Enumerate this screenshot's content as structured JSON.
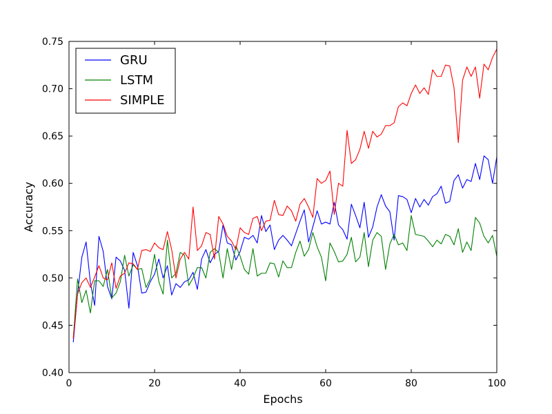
{
  "chart_data": {
    "type": "line",
    "title": "",
    "xlabel": "Epochs",
    "ylabel": "Accuracy",
    "xlim": [
      0,
      100
    ],
    "ylim": [
      0.4,
      0.75
    ],
    "x_ticks": [
      0,
      20,
      40,
      60,
      80,
      100
    ],
    "y_ticks": [
      "0.40",
      "0.45",
      "0.50",
      "0.55",
      "0.60",
      "0.65",
      "0.70",
      "0.75"
    ],
    "grid": false,
    "legend_position": "top-left",
    "x": [
      1,
      2,
      3,
      4,
      5,
      6,
      7,
      8,
      9,
      10,
      11,
      12,
      13,
      14,
      15,
      16,
      17,
      18,
      19,
      20,
      21,
      22,
      23,
      24,
      25,
      26,
      27,
      28,
      29,
      30,
      31,
      32,
      33,
      34,
      35,
      36,
      37,
      38,
      39,
      40,
      41,
      42,
      43,
      44,
      45,
      46,
      47,
      48,
      49,
      50,
      51,
      52,
      53,
      54,
      55,
      56,
      57,
      58,
      59,
      60,
      61,
      62,
      63,
      64,
      65,
      66,
      67,
      68,
      69,
      70,
      71,
      72,
      73,
      74,
      75,
      76,
      77,
      78,
      79,
      80,
      81,
      82,
      83,
      84,
      85,
      86,
      87,
      88,
      89,
      90,
      91,
      92,
      93,
      94,
      95,
      96,
      97,
      98,
      99,
      100
    ],
    "series": [
      {
        "name": "GRU",
        "color": "#0000ff",
        "values": [
          0.432,
          0.483,
          0.522,
          0.538,
          0.495,
          0.471,
          0.544,
          0.528,
          0.491,
          0.478,
          0.522,
          0.518,
          0.508,
          0.468,
          0.527,
          0.513,
          0.484,
          0.485,
          0.496,
          0.504,
          0.52,
          0.5,
          0.513,
          0.482,
          0.494,
          0.49,
          0.496,
          0.498,
          0.506,
          0.488,
          0.52,
          0.53,
          0.516,
          0.525,
          0.528,
          0.556,
          0.537,
          0.535,
          0.519,
          0.528,
          0.543,
          0.541,
          0.545,
          0.537,
          0.566,
          0.549,
          0.556,
          0.53,
          0.54,
          0.545,
          0.54,
          0.534,
          0.547,
          0.56,
          0.572,
          0.538,
          0.554,
          0.571,
          0.557,
          0.559,
          0.557,
          0.58,
          0.556,
          0.551,
          0.541,
          0.578,
          0.566,
          0.553,
          0.58,
          0.543,
          0.554,
          0.575,
          0.588,
          0.576,
          0.57,
          0.54,
          0.587,
          0.586,
          0.583,
          0.569,
          0.584,
          0.575,
          0.583,
          0.577,
          0.586,
          0.589,
          0.597,
          0.579,
          0.581,
          0.603,
          0.609,
          0.595,
          0.604,
          0.602,
          0.621,
          0.604,
          0.629,
          0.625,
          0.6,
          0.628
        ]
      },
      {
        "name": "LSTM",
        "color": "#008000",
        "values": [
          0.436,
          0.499,
          0.474,
          0.487,
          0.463,
          0.497,
          0.497,
          0.491,
          0.509,
          0.479,
          0.484,
          0.496,
          0.524,
          0.502,
          0.514,
          0.509,
          0.51,
          0.49,
          0.499,
          0.525,
          0.496,
          0.483,
          0.54,
          0.5,
          0.505,
          0.527,
          0.524,
          0.492,
          0.5,
          0.511,
          0.511,
          0.5,
          0.527,
          0.531,
          0.527,
          0.5,
          0.531,
          0.509,
          0.534,
          0.523,
          0.509,
          0.504,
          0.531,
          0.502,
          0.505,
          0.505,
          0.516,
          0.515,
          0.501,
          0.518,
          0.511,
          0.511,
          0.527,
          0.539,
          0.523,
          0.53,
          0.548,
          0.533,
          0.522,
          0.497,
          0.537,
          0.528,
          0.517,
          0.518,
          0.525,
          0.543,
          0.517,
          0.522,
          0.548,
          0.512,
          0.54,
          0.548,
          0.544,
          0.509,
          0.536,
          0.546,
          0.535,
          0.537,
          0.529,
          0.566,
          0.546,
          0.545,
          0.544,
          0.539,
          0.533,
          0.54,
          0.536,
          0.546,
          0.544,
          0.535,
          0.552,
          0.527,
          0.538,
          0.529,
          0.564,
          0.558,
          0.544,
          0.537,
          0.545,
          0.523
        ]
      },
      {
        "name": "SIMPLE",
        "color": "#ff0000",
        "values": [
          0.436,
          0.483,
          0.495,
          0.5,
          0.49,
          0.501,
          0.513,
          0.5,
          0.498,
          0.516,
          0.489,
          0.502,
          0.505,
          0.516,
          0.515,
          0.509,
          0.529,
          0.53,
          0.528,
          0.537,
          0.532,
          0.53,
          0.549,
          0.53,
          0.5,
          0.52,
          0.527,
          0.52,
          0.575,
          0.529,
          0.534,
          0.548,
          0.546,
          0.52,
          0.565,
          0.557,
          0.544,
          0.539,
          0.53,
          0.553,
          0.548,
          0.546,
          0.563,
          0.565,
          0.55,
          0.56,
          0.561,
          0.582,
          0.567,
          0.566,
          0.576,
          0.571,
          0.56,
          0.578,
          0.584,
          0.575,
          0.564,
          0.605,
          0.6,
          0.603,
          0.613,
          0.567,
          0.6,
          0.597,
          0.656,
          0.621,
          0.625,
          0.636,
          0.655,
          0.637,
          0.655,
          0.649,
          0.652,
          0.661,
          0.661,
          0.664,
          0.681,
          0.685,
          0.682,
          0.695,
          0.704,
          0.695,
          0.701,
          0.694,
          0.72,
          0.713,
          0.713,
          0.725,
          0.724,
          0.701,
          0.643,
          0.709,
          0.723,
          0.713,
          0.723,
          0.69,
          0.726,
          0.72,
          0.733,
          0.742
        ]
      }
    ]
  }
}
